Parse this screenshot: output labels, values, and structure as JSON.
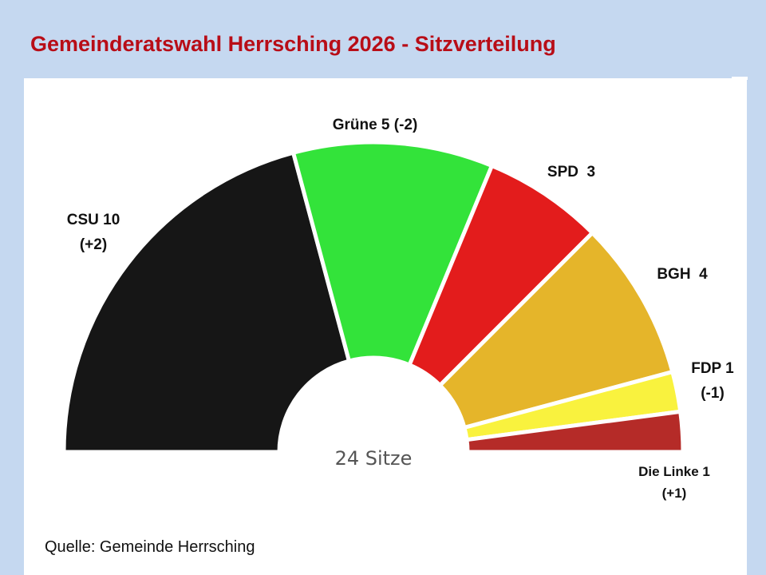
{
  "title": "Gemeinderatswahl Herrsching 2026 - Sitzverteilung",
  "source": "Quelle: Gemeinde Herrsching",
  "chart_data": {
    "type": "pie",
    "shape": "semicircle-parliament",
    "total_label": "24 Sitze",
    "total_seats": 24,
    "parties": [
      {
        "name": "CSU",
        "seats": 10,
        "label_line1": "CSU 10",
        "label_line2": "(+2)",
        "color": "#161616"
      },
      {
        "name": "Grüne",
        "seats": 5,
        "label_line1": "Grüne 5 (-2)",
        "label_line2": "",
        "color": "#33e33a"
      },
      {
        "name": "SPD",
        "seats": 3,
        "label_line1": "SPD  3",
        "label_line2": "",
        "color": "#e31c1c"
      },
      {
        "name": "BGH",
        "seats": 4,
        "label_line1": "BGH  4",
        "label_line2": "",
        "color": "#e5b52a"
      },
      {
        "name": "FDP",
        "seats": 1,
        "label_line1": "FDP 1",
        "label_line2": "(-1)",
        "color": "#f9f23e"
      },
      {
        "name": "Die Linke",
        "seats": 1,
        "label_line1": "Die Linke 1",
        "label_line2": "(+1)",
        "color": "#b52b28"
      }
    ]
  }
}
